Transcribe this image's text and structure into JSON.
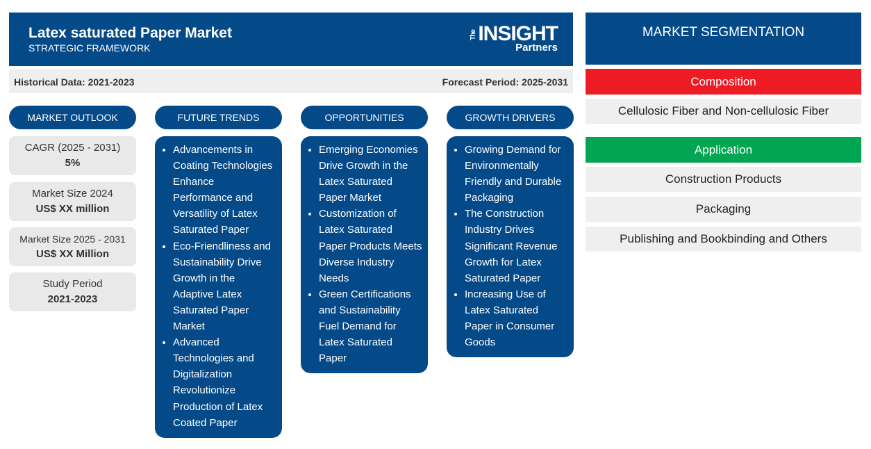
{
  "header": {
    "title": "Latex saturated Paper Market",
    "subtitle": "STRATEGIC FRAMEWORK",
    "logo": {
      "the": "The",
      "insight": "INSIGHT",
      "partners": "Partners"
    }
  },
  "info_bar": {
    "historical": "Historical Data: 2021-2023",
    "forecast": "Forecast Period: 2025-2031"
  },
  "columns": [
    {
      "title": "MARKET OUTLOOK"
    },
    {
      "title": "FUTURE TRENDS",
      "items": [
        "Advancements in Coating Technologies Enhance Performance and Versatility of Latex Saturated Paper",
        "Eco-Friendliness and Sustainability Drive Growth in the Adaptive Latex Saturated Paper Market",
        "Advanced Technologies and Digitalization Revolutionize Production of Latex Coated Paper"
      ]
    },
    {
      "title": "OPPORTUNITIES",
      "items": [
        "Emerging Economies Drive Growth in the Latex Saturated Paper Market",
        "Customization of Latex Saturated Paper Products Meets Diverse Industry Needs",
        "Green Certifications and Sustainability Fuel Demand for Latex Saturated Paper"
      ]
    },
    {
      "title": "GROWTH DRIVERS",
      "items": [
        "Growing Demand for Environmentally Friendly and Durable Packaging",
        "The Construction Industry Drives Significant Revenue Growth for Latex Saturated Paper",
        "Increasing Use of Latex Saturated Paper in Consumer Goods"
      ]
    }
  ],
  "outlook": [
    {
      "label": "CAGR (2025 - 2031)",
      "value": "5%"
    },
    {
      "label": "Market Size 2024",
      "value": "US$ XX million"
    },
    {
      "label": "Market Size 2025 - 2031",
      "value": "US$ XX Million"
    },
    {
      "label": "Study Period",
      "value": "2021-2023"
    }
  ],
  "segmentation": {
    "title": "MARKET SEGMENTATION",
    "composition": {
      "label": "Composition",
      "color": "#ed1c24",
      "items": [
        "Cellulosic Fiber and Non-cellulosic Fiber"
      ]
    },
    "application": {
      "label": "Application",
      "color": "#00a651",
      "items": [
        "Construction Products",
        "Packaging",
        "Publishing and Bookbinding and Others"
      ]
    }
  },
  "colors": {
    "primary": "#044a89"
  }
}
